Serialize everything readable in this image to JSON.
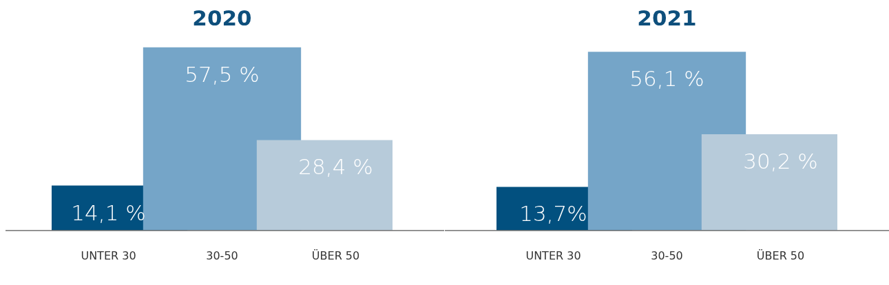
{
  "chart_data": [
    {
      "type": "bar",
      "title": "2020",
      "categories": [
        "UNTER 30",
        "30-50",
        "ÜBER 50"
      ],
      "values": [
        14.1,
        57.5,
        28.4
      ],
      "colors": [
        "#02507f",
        "#75a5c8",
        "#b7cbda"
      ],
      "value_labels": [
        "14,1 %",
        "57,5 %",
        "28,4 %"
      ],
      "tick_labels": "x"
    },
    {
      "type": "bar",
      "title": "2021",
      "categories": [
        "UNTER 30",
        "30-50",
        "ÜBER 50"
      ],
      "values": [
        13.7,
        56.1,
        30.2
      ],
      "colors": [
        "#02507f",
        "#75a5c8",
        "#b7cbda"
      ],
      "value_labels": [
        "13,7%",
        "56,1 %",
        "30,2 %"
      ],
      "tick_labels": "x"
    }
  ]
}
